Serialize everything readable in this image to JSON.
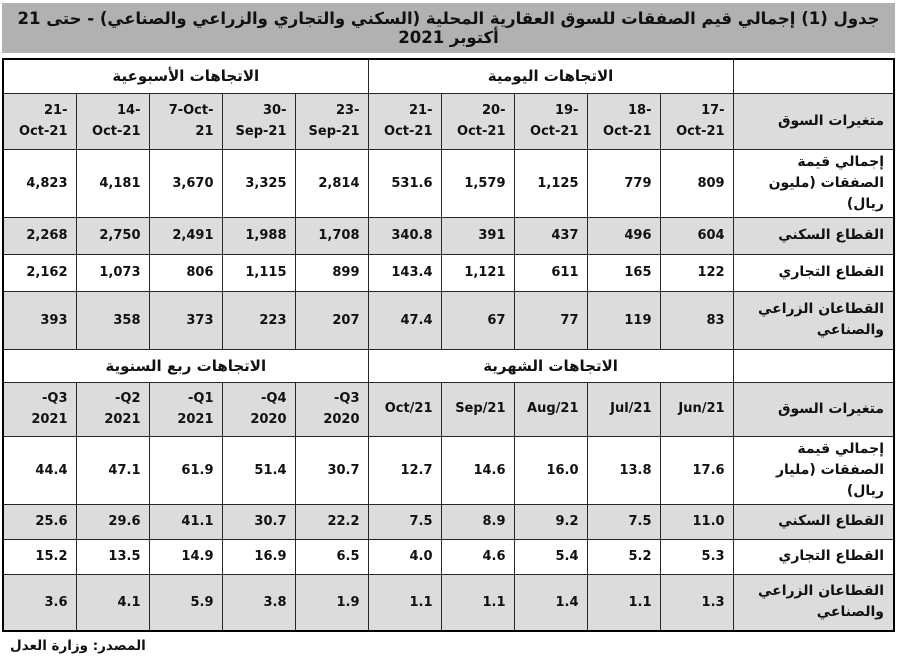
{
  "title": "جدول (1) إجمالي قيم الصفقات للسوق العقارية المحلية (السكني والتجاري والزراعي والصناعي) - حتى 21 أكتوبر 2021",
  "source": "المصدر: وزارة العدل",
  "market_variables_label": "متغيرات السوق",
  "colors": {
    "title_bg": "#b1b1b1",
    "row_alt_bg": "#dcdcdc",
    "border": "#262626"
  },
  "upper": {
    "left_section": "الاتجاهات الأسبوعية",
    "right_section": "الاتجاهات اليومية",
    "columns": [
      "21-Oct-21",
      "14-Oct-21",
      "7-Oct-21",
      "30-Sep-21",
      "23-Sep-21",
      "21-Oct-21",
      "20-Oct-21",
      "19-Oct-21",
      "18-Oct-21",
      "17-Oct-21"
    ],
    "rows": [
      {
        "label": "إجمالي قيمة الصفقات (مليون ريال)",
        "values": [
          "4,823",
          "4,181",
          "3,670",
          "3,325",
          "2,814",
          "531.6",
          "1,579",
          "1,125",
          "779",
          "809"
        ]
      },
      {
        "label": "القطاع السكني",
        "values": [
          "2,268",
          "2,750",
          "2,491",
          "1,988",
          "1,708",
          "340.8",
          "391",
          "437",
          "496",
          "604"
        ]
      },
      {
        "label": "القطاع التجاري",
        "values": [
          "2,162",
          "1,073",
          "806",
          "1,115",
          "899",
          "143.4",
          "1,121",
          "611",
          "165",
          "122"
        ]
      },
      {
        "label": "القطاعان الزراعي والصناعي",
        "values": [
          "393",
          "358",
          "373",
          "223",
          "207",
          "47.4",
          "67",
          "77",
          "119",
          "83"
        ]
      }
    ]
  },
  "lower": {
    "left_section": "الاتجاهات ربع السنوية",
    "right_section": "الاتجاهات الشهرية",
    "columns": [
      "-Q3 2021",
      "-Q2 2021",
      "-Q1 2021",
      "-Q4 2020",
      "-Q3 2020",
      "Oct/21",
      "Sep/21",
      "Aug/21",
      "Jul/21",
      "Jun/21"
    ],
    "rows": [
      {
        "label": "إجمالي قيمة الصفقات (مليار ريال)",
        "values": [
          "44.4",
          "47.1",
          "61.9",
          "51.4",
          "30.7",
          "12.7",
          "14.6",
          "16.0",
          "13.8",
          "17.6"
        ]
      },
      {
        "label": "القطاع السكني",
        "values": [
          "25.6",
          "29.6",
          "41.1",
          "30.7",
          "22.2",
          "7.5",
          "8.9",
          "9.2",
          "7.5",
          "11.0"
        ]
      },
      {
        "label": "القطاع التجاري",
        "values": [
          "15.2",
          "13.5",
          "14.9",
          "16.9",
          "6.5",
          "4.0",
          "4.6",
          "5.4",
          "5.2",
          "5.3"
        ]
      },
      {
        "label": "القطاعان الزراعي والصناعي",
        "values": [
          "3.6",
          "4.1",
          "5.9",
          "3.8",
          "1.9",
          "1.1",
          "1.1",
          "1.4",
          "1.1",
          "1.3"
        ]
      }
    ]
  }
}
